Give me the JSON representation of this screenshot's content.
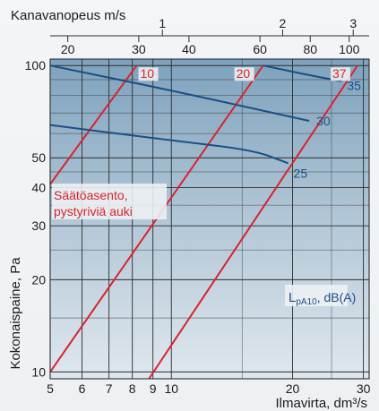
{
  "chart_data": {
    "type": "line",
    "x_scale": "log",
    "y_scale": "log",
    "x_axis": {
      "label": "Ilmavirta, dm³/s",
      "range": [
        5,
        31
      ],
      "ticks": [
        5,
        6,
        7,
        8,
        9,
        10,
        20,
        30
      ],
      "tick_labels": [
        "5",
        "6",
        "7",
        "8",
        "9",
        "10",
        "20",
        "30"
      ]
    },
    "y_axis": {
      "label": "Kokonaispaine, Pa",
      "range": [
        9.5,
        105
      ],
      "ticks": [
        10,
        20,
        30,
        40,
        50,
        100
      ],
      "tick_labels": [
        "10",
        "20",
        "30",
        "40",
        "50",
        "100"
      ]
    },
    "top_axis": {
      "label": "Kanavanopeus m/s",
      "velocity_ticks": [
        {
          "label": "1",
          "x": 9.5
        },
        {
          "label": "2",
          "x": 18.9
        },
        {
          "label": "3",
          "x": 28.3
        }
      ],
      "duct_ticks": [
        {
          "label": "20",
          "x": 5.53
        },
        {
          "label": "30",
          "x": 8.3
        },
        {
          "label": "40",
          "x": 11.06
        },
        {
          "label": "60",
          "x": 16.6
        },
        {
          "label": "80",
          "x": 22.13
        },
        {
          "label": "100",
          "x": 27.66
        }
      ]
    },
    "red_series_title": "Säätöasento, pystyriviä auki",
    "red_series": [
      {
        "label": "10",
        "points": [
          [
            5,
            41
          ],
          [
            8.2,
            100
          ]
        ]
      },
      {
        "label": "20",
        "points": [
          [
            5,
            10
          ],
          [
            16.9,
            100
          ]
        ]
      },
      {
        "label": "37",
        "points": [
          [
            8.8,
            9.5
          ],
          [
            29,
            100
          ]
        ]
      }
    ],
    "blue_series_title": "LpA10, dB(A)",
    "blue_series": [
      {
        "label": "25",
        "points": [
          [
            5,
            64
          ],
          [
            10,
            57
          ],
          [
            16,
            53
          ],
          [
            19.5,
            48
          ]
        ]
      },
      {
        "label": "30",
        "points": [
          [
            5,
            100
          ],
          [
            10,
            83
          ],
          [
            22,
            66
          ]
        ]
      },
      {
        "label": "35",
        "points": [
          [
            16.9,
            100
          ],
          [
            25,
            90
          ],
          [
            26.5,
            89
          ]
        ]
      }
    ]
  },
  "labels": {
    "top_axis_title": "Kanavanopeus m/s",
    "x_axis_title": "Ilmavirta, dm³/s",
    "y_axis_title": "Kokonaispaine, Pa",
    "red_note_line1": "Säätöasento,",
    "red_note_line2": "pystyriviä auki",
    "blue_note_main": "L",
    "blue_note_sub": "pA10",
    "blue_note_unit": ", dB(A)"
  },
  "colors": {
    "red": "#d8242d",
    "blue": "#1a4f86",
    "grid": "#2b2b2b",
    "plot_top": "#7ea2bd",
    "plot_bottom": "#d9e3ec"
  }
}
